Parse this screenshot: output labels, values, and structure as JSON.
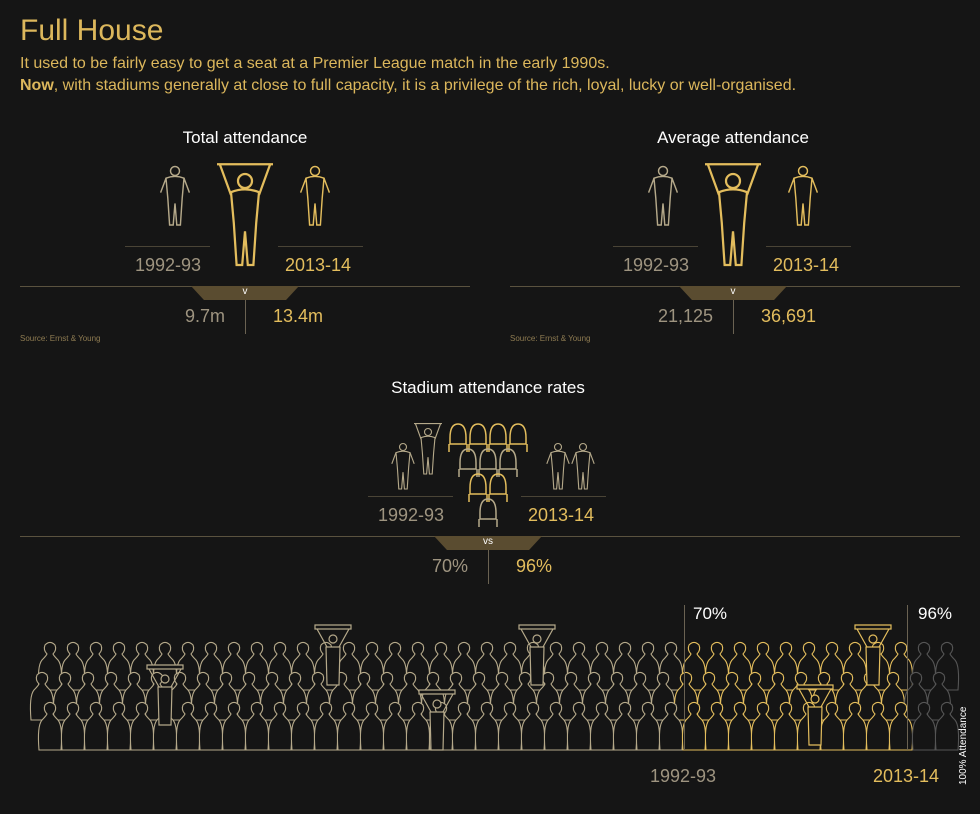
{
  "title": "Full House",
  "subtitle_line1": "It used to be fairly easy to get a seat at a Premier League match in the early 1990s.",
  "subtitle_line2_bold": "Now",
  "subtitle_line2_rest": ", with stadiums generally at close to full capacity, it is a privilege of the rich, loyal, lucky or well-organised.",
  "colors": {
    "background": "#151515",
    "old": "#b5a98a",
    "new": "#e3bd5d",
    "band": "#5a4c30"
  },
  "panels": [
    {
      "title": "Total attendance",
      "year_old": "1992-93",
      "year_new": "2013-14",
      "vs": "v",
      "value_old": "9.7m",
      "value_new": "13.4m",
      "source": "Source: Ernst & Young"
    },
    {
      "title": "Average attendance",
      "year_old": "1992-93",
      "year_new": "2013-14",
      "vs": "v",
      "value_old": "21,125",
      "value_new": "36,691",
      "source": "Source: Ernst & Young"
    },
    {
      "title": "Stadium attendance rates",
      "year_old": "1992-93",
      "year_new": "2013-14",
      "vs": "vs",
      "value_old": "70%",
      "value_new": "96%"
    }
  ],
  "crowd": {
    "label_old_pct": "70%",
    "label_new_pct": "96%",
    "year_old": "1992-93",
    "year_new": "2013-14",
    "axis_label": "100% Attendance"
  },
  "chart_data": [
    {
      "type": "bar",
      "title": "Total attendance",
      "categories": [
        "1992-93",
        "2013-14"
      ],
      "values": [
        9.7,
        13.4
      ],
      "unit": "m"
    },
    {
      "type": "bar",
      "title": "Average attendance",
      "categories": [
        "1992-93",
        "2013-14"
      ],
      "values": [
        21125,
        36691
      ]
    },
    {
      "type": "bar",
      "title": "Stadium attendance rates",
      "categories": [
        "1992-93",
        "2013-14"
      ],
      "values": [
        70,
        96
      ],
      "unit": "%"
    }
  ]
}
